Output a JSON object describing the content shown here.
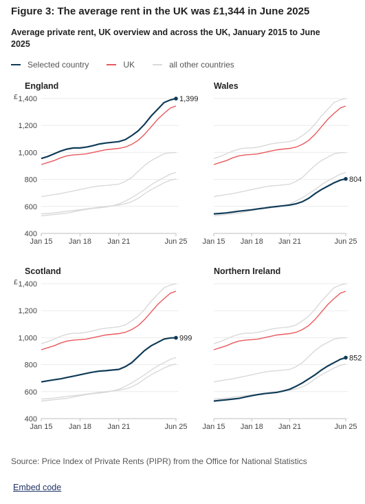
{
  "title": "Figure 3: The average rent in the UK was £1,344 in June 2025",
  "subtitle": "Average private rent, UK overview and across the UK, January 2015 to June 2025",
  "legend": {
    "selected": "Selected country",
    "uk": "UK",
    "others": "all other countries"
  },
  "colors": {
    "selected": "#0f3b57",
    "uk": "#e8585c",
    "others": "#d9d9d9",
    "axis": "#bfbfbf",
    "text": "#222222"
  },
  "source": "Source: Price Index of Private Rents (PIPR) from the Office for National Statistics",
  "embed_label": "Embed code",
  "chart_data": {
    "type": "line",
    "currency_symbol": "£",
    "x": [
      2015.0,
      2015.5,
      2016.0,
      2016.5,
      2017.0,
      2017.5,
      2018.0,
      2018.5,
      2019.0,
      2019.5,
      2020.0,
      2020.5,
      2021.0,
      2021.5,
      2022.0,
      2022.5,
      2023.0,
      2023.5,
      2024.0,
      2024.5,
      2025.0,
      2025.42
    ],
    "x_ticks": [
      "Jan 15",
      "Jan 18",
      "Jan 21",
      "Jun 25"
    ],
    "x_tick_values": [
      2015.0,
      2018.0,
      2021.0,
      2025.42
    ],
    "ylim": [
      400,
      1400
    ],
    "y_ticks": [
      400,
      600,
      800,
      1000,
      1200,
      1400
    ],
    "y_tick_labels": [
      "400",
      "600",
      "800",
      "1,000",
      "1,200",
      "1,400"
    ],
    "grid": true,
    "series": {
      "England": [
        955,
        970,
        990,
        1010,
        1025,
        1033,
        1033,
        1040,
        1050,
        1063,
        1070,
        1075,
        1080,
        1095,
        1125,
        1160,
        1210,
        1270,
        1320,
        1370,
        1390,
        1399
      ],
      "Wales": [
        545,
        548,
        552,
        558,
        565,
        570,
        575,
        582,
        588,
        595,
        600,
        605,
        610,
        620,
        635,
        660,
        695,
        725,
        750,
        775,
        795,
        804
      ],
      "Scotland": [
        672,
        680,
        688,
        695,
        705,
        715,
        725,
        735,
        745,
        752,
        755,
        760,
        765,
        785,
        815,
        860,
        905,
        940,
        965,
        990,
        998,
        999
      ],
      "Northern Ireland": [
        530,
        535,
        540,
        545,
        550,
        560,
        570,
        578,
        585,
        590,
        595,
        605,
        618,
        640,
        665,
        695,
        725,
        760,
        790,
        815,
        840,
        852
      ],
      "UK": [
        910,
        925,
        940,
        960,
        975,
        982,
        985,
        990,
        1000,
        1010,
        1020,
        1025,
        1030,
        1040,
        1060,
        1090,
        1135,
        1190,
        1245,
        1290,
        1330,
        1344
      ]
    },
    "panels": [
      {
        "name": "England",
        "end_label": "1,399"
      },
      {
        "name": "Wales",
        "end_label": "804"
      },
      {
        "name": "Scotland",
        "end_label": "999"
      },
      {
        "name": "Northern Ireland",
        "end_label": "852"
      }
    ]
  }
}
